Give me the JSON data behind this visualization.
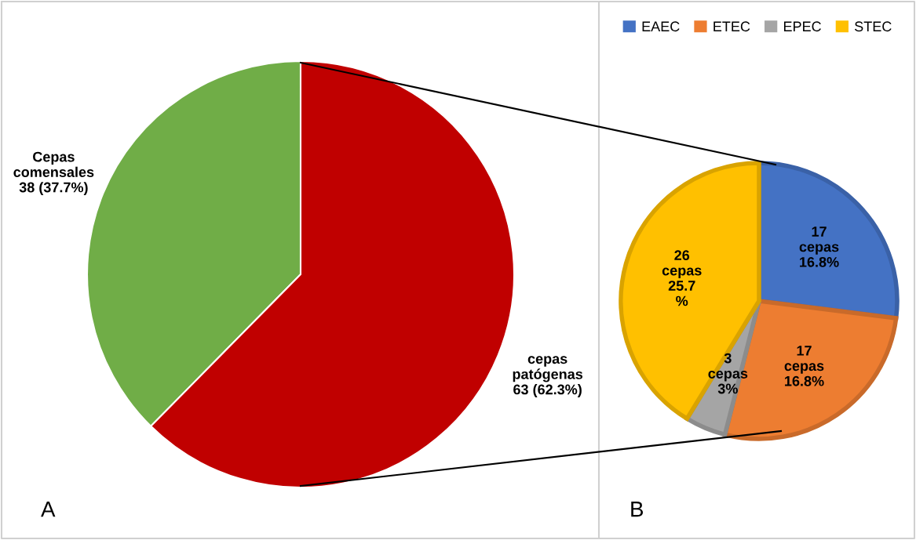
{
  "chart_data": [
    {
      "type": "pie",
      "categories": [
        "Cepas comensales",
        "cepas patógenas"
      ],
      "values": [
        38,
        63
      ],
      "colors": [
        "#70ad47",
        "#c00000"
      ],
      "value_labels": [
        "38 (37.7%)",
        "63 (62.3%)"
      ],
      "annotations": [
        "A"
      ],
      "legend": false
    },
    {
      "type": "pie",
      "categories": [
        "EAEC",
        "ETEC",
        "EPEC",
        "STEC"
      ],
      "values": [
        17,
        17,
        3,
        26
      ],
      "colors": [
        "#4472c4",
        "#ed7d31",
        "#a5a5a5",
        "#ffc000"
      ],
      "value_labels": [
        "17\ncepas\n16.8%",
        "17\ncepas\n16.8%",
        "3\ncepas\n3%",
        "26\ncepas\n25.7\n%"
      ],
      "annotations": [
        "B"
      ],
      "legend": "top"
    }
  ]
}
